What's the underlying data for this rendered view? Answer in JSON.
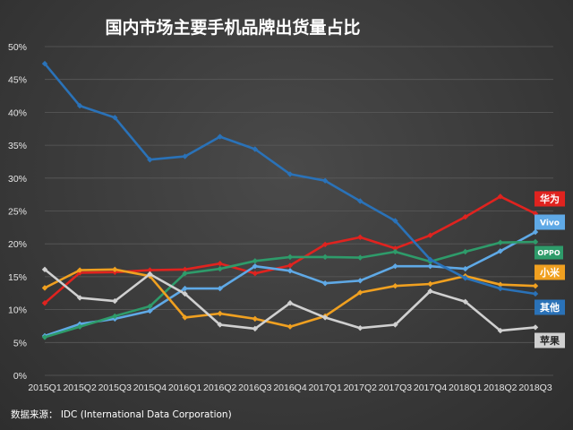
{
  "chart_data": {
    "type": "line",
    "title": "国内市场主要手机品牌出货量占比",
    "xlabel": "",
    "ylabel": "",
    "ylim": [
      0,
      50
    ],
    "yticks": [
      "0%",
      "5%",
      "10%",
      "15%",
      "20%",
      "25%",
      "30%",
      "35%",
      "40%",
      "45%",
      "50%"
    ],
    "categories": [
      "2015Q1",
      "2015Q2",
      "2015Q3",
      "2015Q4",
      "2016Q1",
      "2016Q2",
      "2016Q3",
      "2016Q4",
      "2017Q1",
      "2017Q2",
      "2017Q3",
      "2017Q4",
      "2018Q1",
      "2018Q2",
      "2018Q3"
    ],
    "grid": true,
    "legend": "right",
    "series": [
      {
        "name": "华为",
        "color": "#e0231f",
        "values": [
          11.0,
          15.6,
          15.7,
          16.0,
          16.1,
          17.0,
          15.5,
          16.7,
          19.9,
          21.0,
          19.3,
          21.3,
          24.1,
          27.2,
          24.6
        ]
      },
      {
        "name": "Vivo",
        "color": "#5fa9e6",
        "values": [
          6.0,
          7.8,
          8.6,
          9.8,
          13.2,
          13.2,
          16.6,
          15.9,
          14.0,
          14.4,
          16.6,
          16.6,
          16.2,
          18.9,
          21.8
        ]
      },
      {
        "name": "OPPO",
        "color": "#2e9b6a",
        "values": [
          5.8,
          7.4,
          9.0,
          10.5,
          15.5,
          16.2,
          17.4,
          18.0,
          18.0,
          17.9,
          18.8,
          17.3,
          18.8,
          20.2,
          20.3
        ]
      },
      {
        "name": "小米",
        "color": "#f0a020",
        "values": [
          13.3,
          16.0,
          16.1,
          15.1,
          8.8,
          9.4,
          8.6,
          7.4,
          9.0,
          12.6,
          13.6,
          13.9,
          15.1,
          13.8,
          13.6
        ]
      },
      {
        "name": "其他",
        "color": "#2a72b8",
        "values": [
          47.4,
          41.0,
          39.2,
          32.8,
          33.3,
          36.3,
          34.4,
          30.6,
          29.6,
          26.5,
          23.5,
          17.6,
          14.8,
          13.2,
          12.4
        ]
      },
      {
        "name": "苹果",
        "color": "#d0d0d0",
        "values": [
          16.1,
          11.8,
          11.3,
          15.4,
          12.4,
          7.7,
          7.1,
          11.0,
          8.8,
          7.2,
          7.7,
          12.8,
          11.2,
          6.8,
          7.3
        ]
      }
    ],
    "tag_text_colors": [
      "#ffffff",
      "#ffffff",
      "#ffffff",
      "#ffffff",
      "#ffffff",
      "#222222"
    ]
  },
  "footer": {
    "source": "数据来源：  IDC (International Data Corporation)"
  }
}
